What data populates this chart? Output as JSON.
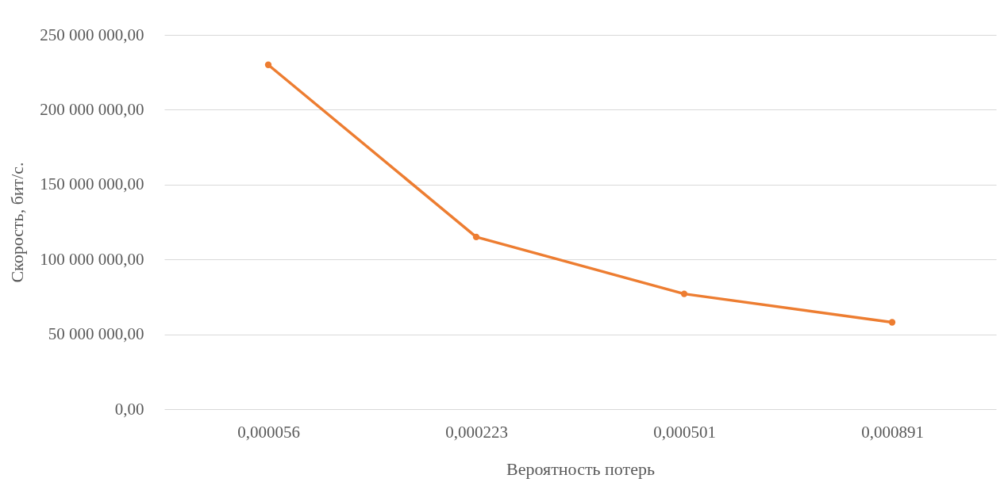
{
  "chart_data": {
    "type": "line",
    "xlabel": "Вероятность потерь",
    "ylabel": "Скорость, бит/с.",
    "categories": [
      "0,000056",
      "0,000223",
      "0,000501",
      "0,000891"
    ],
    "series": [
      {
        "color": "#ed7d31",
        "values": [
          230000000,
          115000000,
          77000000,
          58000000
        ]
      }
    ],
    "ylim": [
      0,
      250000000
    ],
    "yticks": [
      {
        "value": 0,
        "label": "0,00"
      },
      {
        "value": 50000000,
        "label": "50 000 000,00"
      },
      {
        "value": 100000000,
        "label": "100 000 000,00"
      },
      {
        "value": 150000000,
        "label": "150 000 000,00"
      },
      {
        "value": 200000000,
        "label": "200 000 000,00"
      },
      {
        "value": 250000000,
        "label": "250 000 000,00"
      }
    ],
    "grid": "y",
    "marker": "circle",
    "line_style": "solid"
  }
}
